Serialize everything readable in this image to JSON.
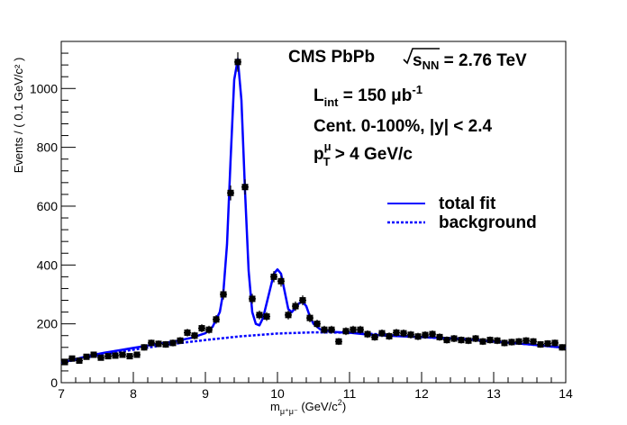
{
  "chart_data": {
    "type": "scatter",
    "xlabel": {
      "base": "m",
      "sub": "μ⁺μ⁻",
      "rest": " (GeV/c",
      "sup": "2",
      "end": ")"
    },
    "ylabel": "Events / ( 0.1 GeV/c² )",
    "xlim": [
      7,
      14
    ],
    "ylim": [
      0,
      1160
    ],
    "xticks": [
      "7",
      "8",
      "9",
      "10",
      "11",
      "12",
      "13",
      "14"
    ],
    "yticks": [
      "0",
      "200",
      "400",
      "600",
      "800",
      "1000"
    ],
    "annotations": {
      "line1": {
        "pre": "CMS PbPb   ",
        "root_arg": "s",
        "root_sub": "NN",
        "post": " = 2.76 TeV"
      },
      "line2": {
        "pre": "L",
        "sub": "int",
        "mid": " = 150  μb",
        "sup": "-1"
      },
      "line3": "Cent. 0-100%, |y| < 2.4",
      "line4": {
        "pre": "p",
        "sup": "μ",
        "sub": "T",
        "post": " > 4 GeV/c"
      }
    },
    "legend": {
      "placement": "right",
      "total_fit": "total fit",
      "background": "background"
    },
    "colors": {
      "fit": "#0000ff",
      "background": "#0000ff",
      "points": "#000000"
    },
    "series": [
      {
        "name": "data",
        "x": [
          7.05,
          7.15,
          7.25,
          7.35,
          7.45,
          7.55,
          7.65,
          7.75,
          7.85,
          7.95,
          8.05,
          8.15,
          8.25,
          8.35,
          8.45,
          8.55,
          8.65,
          8.75,
          8.85,
          8.95,
          9.05,
          9.15,
          9.25,
          9.35,
          9.45,
          9.55,
          9.65,
          9.75,
          9.85,
          9.95,
          10.05,
          10.15,
          10.25,
          10.35,
          10.45,
          10.55,
          10.65,
          10.75,
          10.85,
          10.95,
          11.05,
          11.15,
          11.25,
          11.35,
          11.45,
          11.55,
          11.65,
          11.75,
          11.85,
          11.95,
          12.05,
          12.15,
          12.25,
          12.35,
          12.45,
          12.55,
          12.65,
          12.75,
          12.85,
          12.95,
          13.05,
          13.15,
          13.25,
          13.35,
          13.45,
          13.55,
          13.65,
          13.75,
          13.85,
          13.95
        ],
        "y": [
          70,
          82,
          75,
          88,
          95,
          85,
          90,
          92,
          95,
          90,
          95,
          120,
          135,
          132,
          130,
          135,
          143,
          170,
          160,
          185,
          180,
          215,
          300,
          645,
          1090,
          665,
          285,
          230,
          225,
          360,
          345,
          230,
          260,
          280,
          220,
          200,
          180,
          180,
          140,
          175,
          180,
          180,
          165,
          155,
          168,
          158,
          170,
          168,
          163,
          157,
          162,
          165,
          155,
          145,
          150,
          145,
          143,
          150,
          140,
          145,
          143,
          135,
          138,
          140,
          143,
          140,
          130,
          133,
          135,
          120
        ]
      }
    ],
    "fit": {
      "name": "total fit",
      "x": [
        7.0,
        7.2,
        7.4,
        7.6,
        7.8,
        8.0,
        8.2,
        8.4,
        8.6,
        8.8,
        9.0,
        9.1,
        9.2,
        9.25,
        9.3,
        9.35,
        9.4,
        9.45,
        9.5,
        9.55,
        9.6,
        9.65,
        9.7,
        9.75,
        9.8,
        9.85,
        9.9,
        9.95,
        10.0,
        10.05,
        10.1,
        10.15,
        10.2,
        10.25,
        10.3,
        10.35,
        10.4,
        10.45,
        10.5,
        10.6,
        10.8,
        11.0,
        11.2,
        11.5,
        12.0,
        12.5,
        13.0,
        13.5,
        14.0
      ],
      "y": [
        68,
        80,
        92,
        102,
        110,
        118,
        126,
        134,
        142,
        152,
        168,
        190,
        240,
        310,
        470,
        760,
        1030,
        1100,
        960,
        650,
        380,
        240,
        200,
        195,
        220,
        270,
        320,
        370,
        385,
        370,
        310,
        250,
        240,
        255,
        270,
        275,
        260,
        225,
        200,
        180,
        172,
        170,
        165,
        160,
        155,
        150,
        140,
        130,
        118
      ]
    },
    "background": {
      "name": "background",
      "x": [
        7.0,
        7.5,
        8.0,
        8.5,
        9.0,
        9.5,
        10.0,
        10.5,
        11.0,
        11.5,
        12.0,
        12.5,
        13.0,
        13.5,
        14.0
      ],
      "y": [
        68,
        92,
        112,
        130,
        145,
        158,
        167,
        171,
        170,
        163,
        155,
        148,
        140,
        130,
        118
      ]
    }
  }
}
